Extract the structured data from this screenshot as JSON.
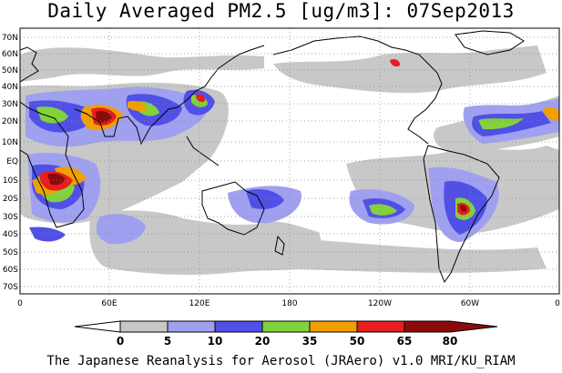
{
  "title": "Daily Averaged PM2.5 [ug/m3]: 07Sep2013",
  "credit": "The Japanese Reanalysis for Aerosol (JRAero) v1.0 MRI/KU_RIAM",
  "lat_labels": [
    "70N",
    "60N",
    "50N",
    "40N",
    "30N",
    "20N",
    "10N",
    "EQ",
    "10S",
    "20S",
    "30S",
    "40S",
    "50S",
    "60S",
    "70S"
  ],
  "lon_labels": [
    "0",
    "60E",
    "120E",
    "180",
    "120W",
    "60W",
    "0"
  ],
  "colorbar": {
    "levels": [
      "0",
      "5",
      "10",
      "20",
      "35",
      "50",
      "65",
      "80"
    ],
    "colors": [
      "#ffffff",
      "#c8c8c8",
      "#a0a0f0",
      "#5050e6",
      "#82d23c",
      "#f0a000",
      "#e61e1e",
      "#8c0a0a"
    ]
  }
}
